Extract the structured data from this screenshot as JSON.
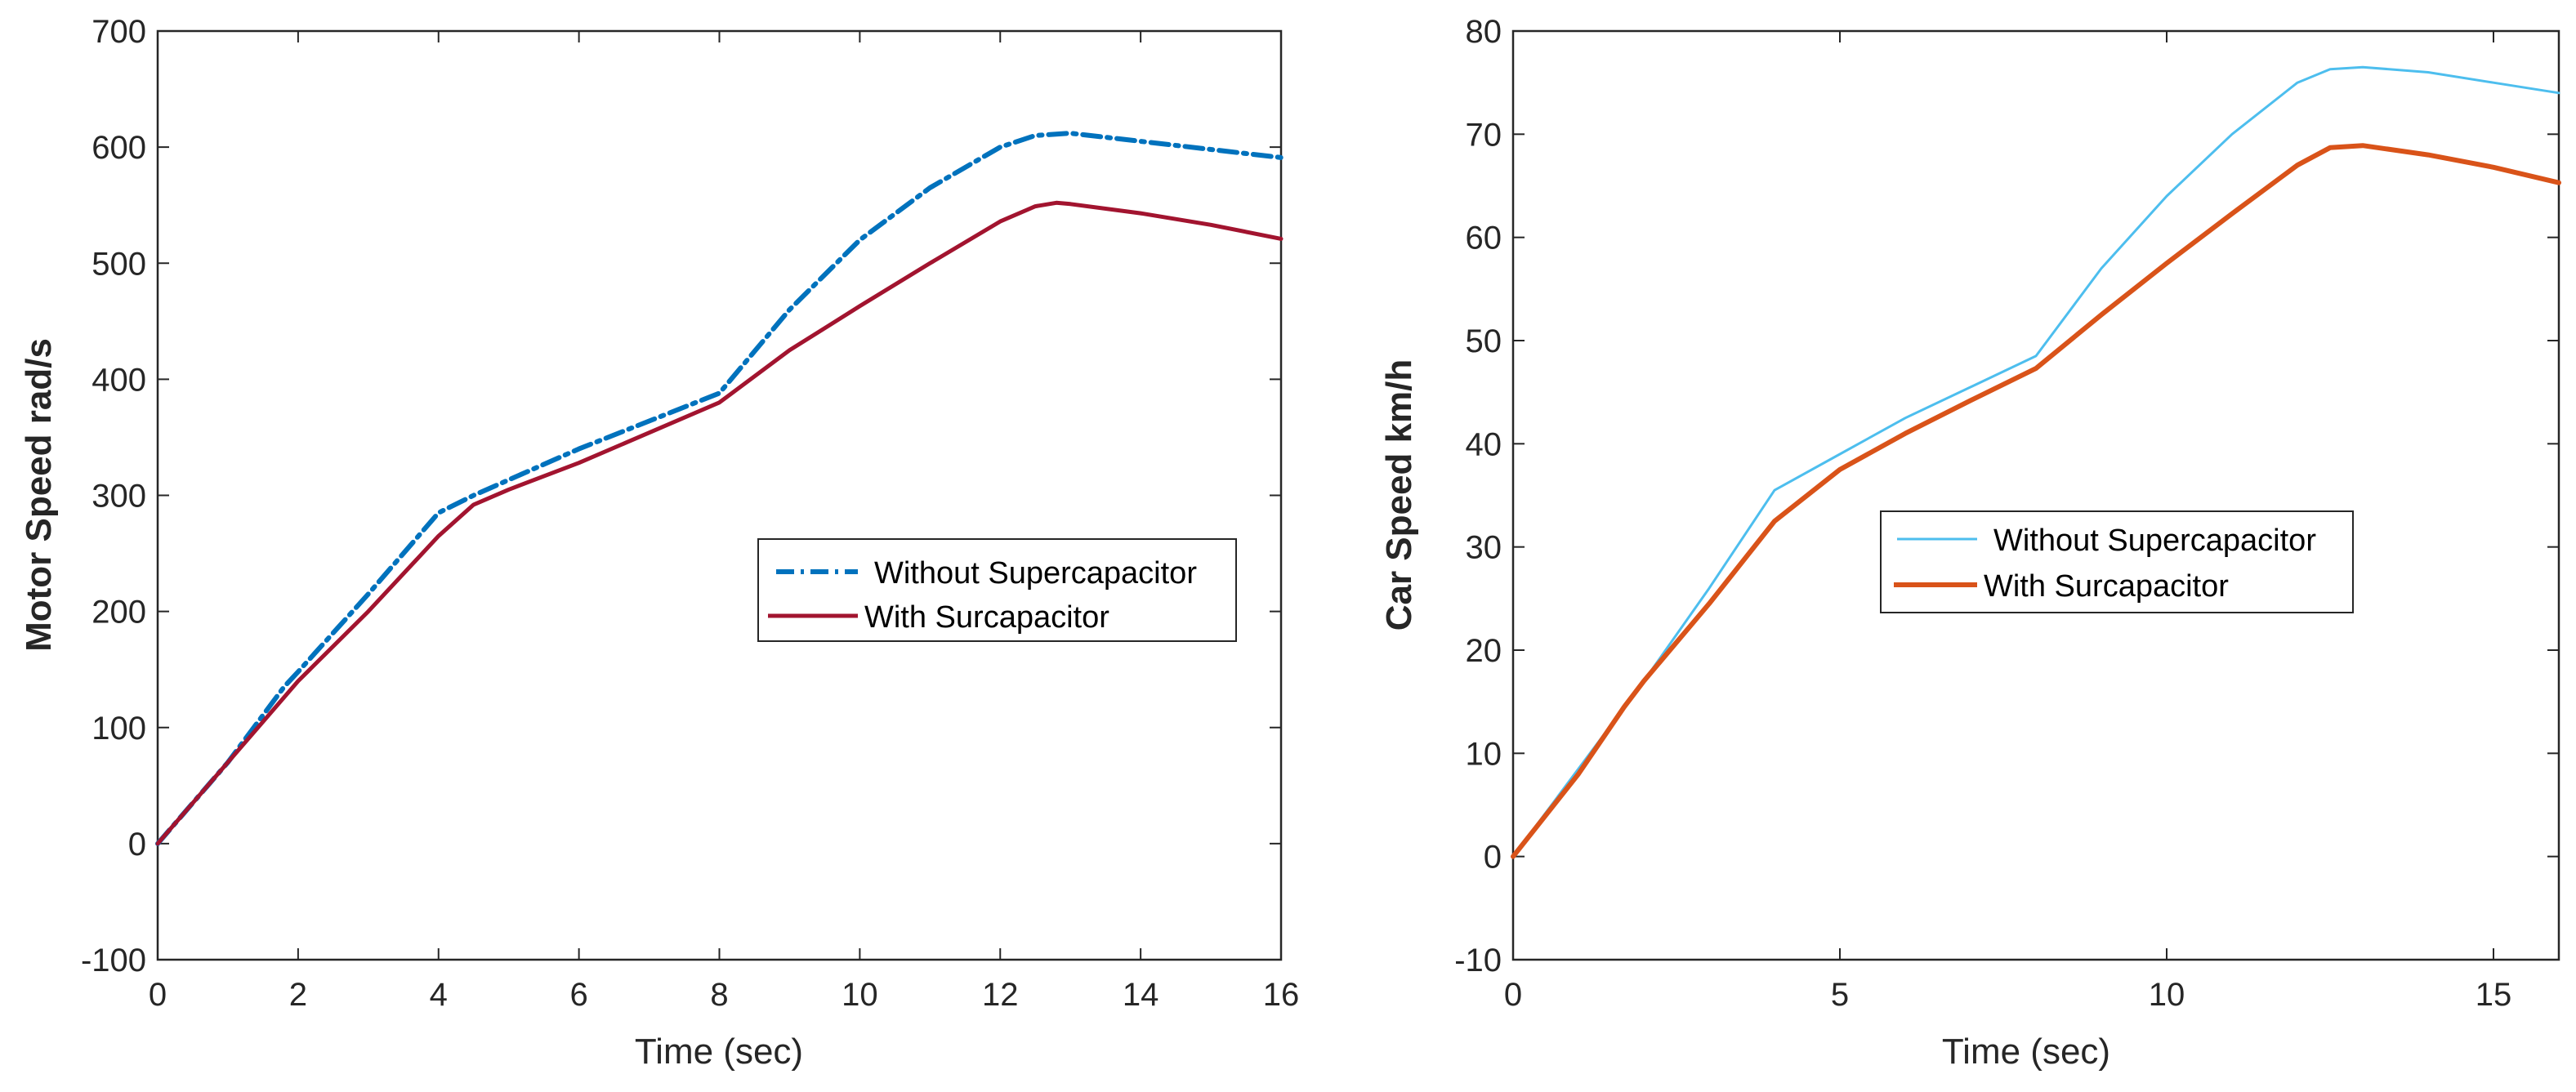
{
  "chart_data": [
    {
      "type": "line",
      "xlabel": "Time (sec)",
      "ylabel": "Motor Speed rad/s",
      "xlim": [
        0,
        16
      ],
      "ylim": [
        -100,
        700
      ],
      "xticks": [
        0,
        2,
        4,
        6,
        8,
        10,
        12,
        14,
        16
      ],
      "yticks": [
        -100,
        0,
        100,
        200,
        300,
        400,
        500,
        600,
        700
      ],
      "legend_position": "center-right",
      "series": [
        {
          "name": "Without Supercapacitor",
          "color": "#0072BD",
          "style": "dash-dot",
          "points": [
            [
              0,
              0
            ],
            [
              1,
              70
            ],
            [
              1.8,
              135
            ],
            [
              2,
              148
            ],
            [
              3,
              215
            ],
            [
              4,
              285
            ],
            [
              4.5,
              300
            ],
            [
              6,
              340
            ],
            [
              8,
              388
            ],
            [
              9,
              460
            ],
            [
              10,
              520
            ],
            [
              11,
              565
            ],
            [
              12,
              600
            ],
            [
              12.5,
              610
            ],
            [
              13,
              612
            ],
            [
              14,
              605
            ],
            [
              15,
              598
            ],
            [
              16,
              591
            ]
          ]
        },
        {
          "name": "With Surcapacitor",
          "color": "#A2142F",
          "style": "solid",
          "points": [
            [
              0,
              0
            ],
            [
              1,
              70
            ],
            [
              2,
              140
            ],
            [
              3,
              200
            ],
            [
              4,
              265
            ],
            [
              4.5,
              292
            ],
            [
              5,
              305
            ],
            [
              6,
              328
            ],
            [
              8,
              380
            ],
            [
              9,
              425
            ],
            [
              10,
              463
            ],
            [
              11,
              500
            ],
            [
              12,
              536
            ],
            [
              12.5,
              549
            ],
            [
              12.8,
              552
            ],
            [
              13,
              551
            ],
            [
              14,
              543
            ],
            [
              15,
              533
            ],
            [
              16,
              521
            ]
          ]
        }
      ]
    },
    {
      "type": "line",
      "xlabel": "Time (sec)",
      "ylabel": "Car Speed km/h",
      "xlim": [
        0,
        16
      ],
      "ylim": [
        -10,
        80
      ],
      "xticks": [
        0,
        5,
        10,
        15
      ],
      "yticks": [
        -10,
        0,
        10,
        20,
        30,
        40,
        50,
        60,
        70,
        80
      ],
      "legend_position": "center",
      "series": [
        {
          "name": "Without Supercapacitor",
          "color": "#4DBEEE",
          "style": "solid-thin",
          "points": [
            [
              0,
              0
            ],
            [
              1,
              8.5
            ],
            [
              2,
              17
            ],
            [
              3,
              26
            ],
            [
              4,
              35.5
            ],
            [
              5,
              39
            ],
            [
              6,
              42.5
            ],
            [
              7,
              45.5
            ],
            [
              8,
              48.5
            ],
            [
              9,
              57
            ],
            [
              10,
              64
            ],
            [
              11,
              70
            ],
            [
              12,
              75
            ],
            [
              12.5,
              76.3
            ],
            [
              13,
              76.5
            ],
            [
              14,
              76
            ],
            [
              15,
              75
            ],
            [
              16,
              74
            ]
          ]
        },
        {
          "name": "With Surcapacitor",
          "color": "#D95319",
          "style": "solid-thick",
          "points": [
            [
              0,
              0
            ],
            [
              1,
              8
            ],
            [
              1.7,
              14.5
            ],
            [
              2,
              17
            ],
            [
              3,
              24.5
            ],
            [
              4,
              32.5
            ],
            [
              5,
              37.5
            ],
            [
              6,
              41
            ],
            [
              7,
              44.2
            ],
            [
              8,
              47.3
            ],
            [
              9,
              52.5
            ],
            [
              10,
              57.5
            ],
            [
              11,
              62.3
            ],
            [
              12,
              67
            ],
            [
              12.5,
              68.7
            ],
            [
              13,
              68.9
            ],
            [
              14,
              68
            ],
            [
              15,
              66.8
            ],
            [
              16,
              65.3
            ]
          ]
        }
      ]
    }
  ]
}
